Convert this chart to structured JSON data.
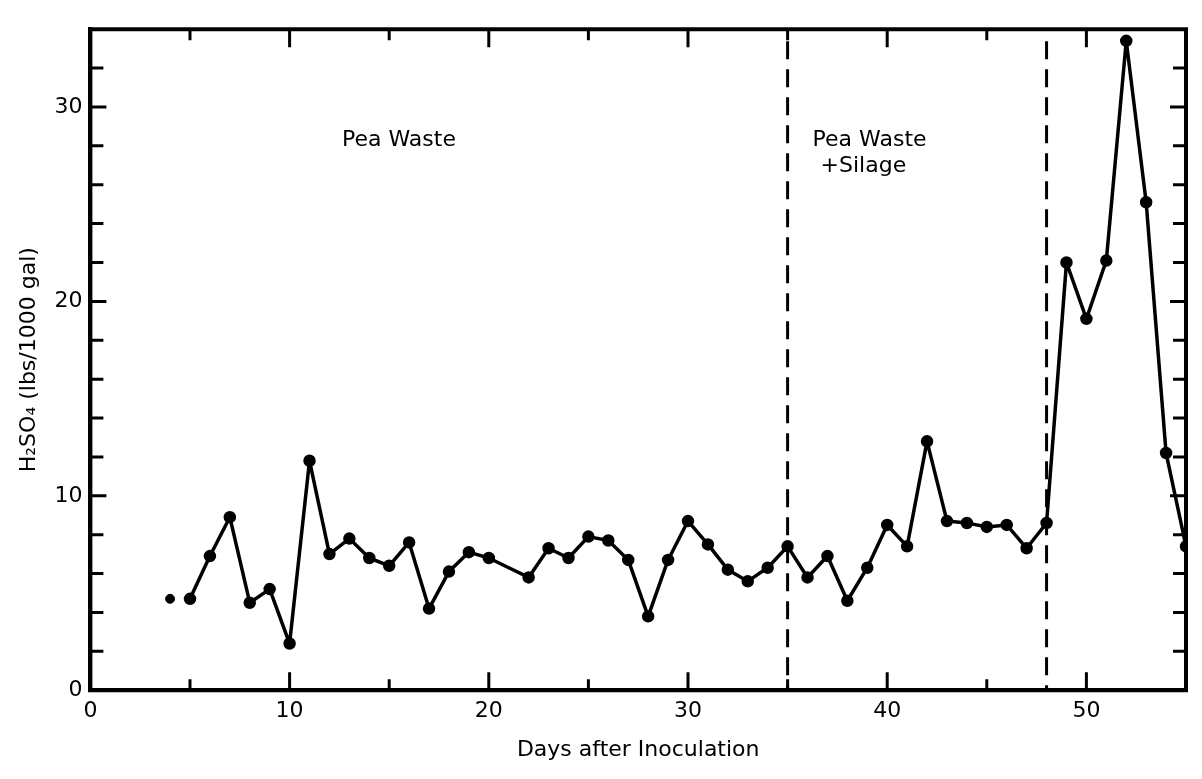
{
  "chart_data": {
    "type": "line",
    "xlabel": "Days after Inoculation",
    "ylabel": "H₂SO₄ (lbs/1000 gal)",
    "xlim": [
      0,
      55
    ],
    "xticks": [
      0,
      {
        "value": 5,
        "label": null
      },
      10,
      {
        "value": 15,
        "label": null
      },
      20,
      {
        "value": 25,
        "label": null
      },
      30,
      {
        "value": 35,
        "label": null
      },
      40,
      {
        "value": 45,
        "label": null
      },
      50
    ],
    "ylim": [
      0,
      34
    ],
    "yticks": [
      0,
      {
        "value": 2,
        "label": null
      },
      {
        "value": 4,
        "label": null
      },
      {
        "value": 6,
        "label": null
      },
      {
        "value": 8,
        "label": null
      },
      10,
      {
        "value": 12,
        "label": null
      },
      {
        "value": 14,
        "label": null
      },
      {
        "value": 16,
        "label": null
      },
      {
        "value": 18,
        "label": null
      },
      20,
      {
        "value": 22,
        "label": null
      },
      {
        "value": 24,
        "label": null
      },
      {
        "value": 26,
        "label": null
      },
      {
        "value": 28,
        "label": null
      },
      30,
      {
        "value": 32,
        "label": null
      }
    ],
    "marker": "circle",
    "line_style": "solid",
    "legend": false,
    "series": [
      {
        "type": "line",
        "color": "#000000",
        "x": [
          5,
          6,
          7,
          8,
          9,
          10,
          11,
          12,
          13,
          14,
          15,
          16,
          17,
          18,
          19,
          20,
          22,
          23,
          24,
          25,
          26,
          27,
          28,
          29,
          30,
          31,
          32,
          33,
          34,
          35,
          36,
          37,
          38,
          39,
          40,
          41,
          42,
          43,
          44,
          45,
          46,
          47,
          48,
          49,
          50,
          51,
          52,
          53,
          54,
          55
        ],
        "values": [
          4.7,
          6.9,
          8.9,
          4.5,
          5.2,
          2.4,
          11.8,
          7.0,
          7.8,
          6.8,
          6.4,
          7.6,
          4.2,
          6.1,
          7.1,
          6.8,
          5.8,
          7.3,
          6.8,
          7.9,
          7.7,
          6.7,
          3.8,
          6.7,
          8.7,
          7.5,
          6.2,
          5.6,
          6.3,
          7.4,
          5.8,
          6.9,
          4.6,
          6.3,
          8.5,
          7.4,
          12.8,
          8.7,
          8.6,
          8.4,
          8.5,
          7.3,
          8.6,
          22.0,
          19.1,
          22.1,
          33.4,
          25.1,
          12.2,
          7.4
        ]
      },
      {
        "type": "scatter",
        "color": "#000000",
        "x": [
          4
        ],
        "values": [
          4.7
        ]
      }
    ],
    "ref_lines": [
      {
        "axis": "x",
        "value": 35,
        "line_style": "dashed",
        "color": "#000000"
      },
      {
        "axis": "x",
        "value": 48,
        "line_style": "dashed",
        "color": "#000000"
      }
    ],
    "annotations": [
      "Pea Waste",
      "Pea Waste\n+Silage"
    ]
  }
}
